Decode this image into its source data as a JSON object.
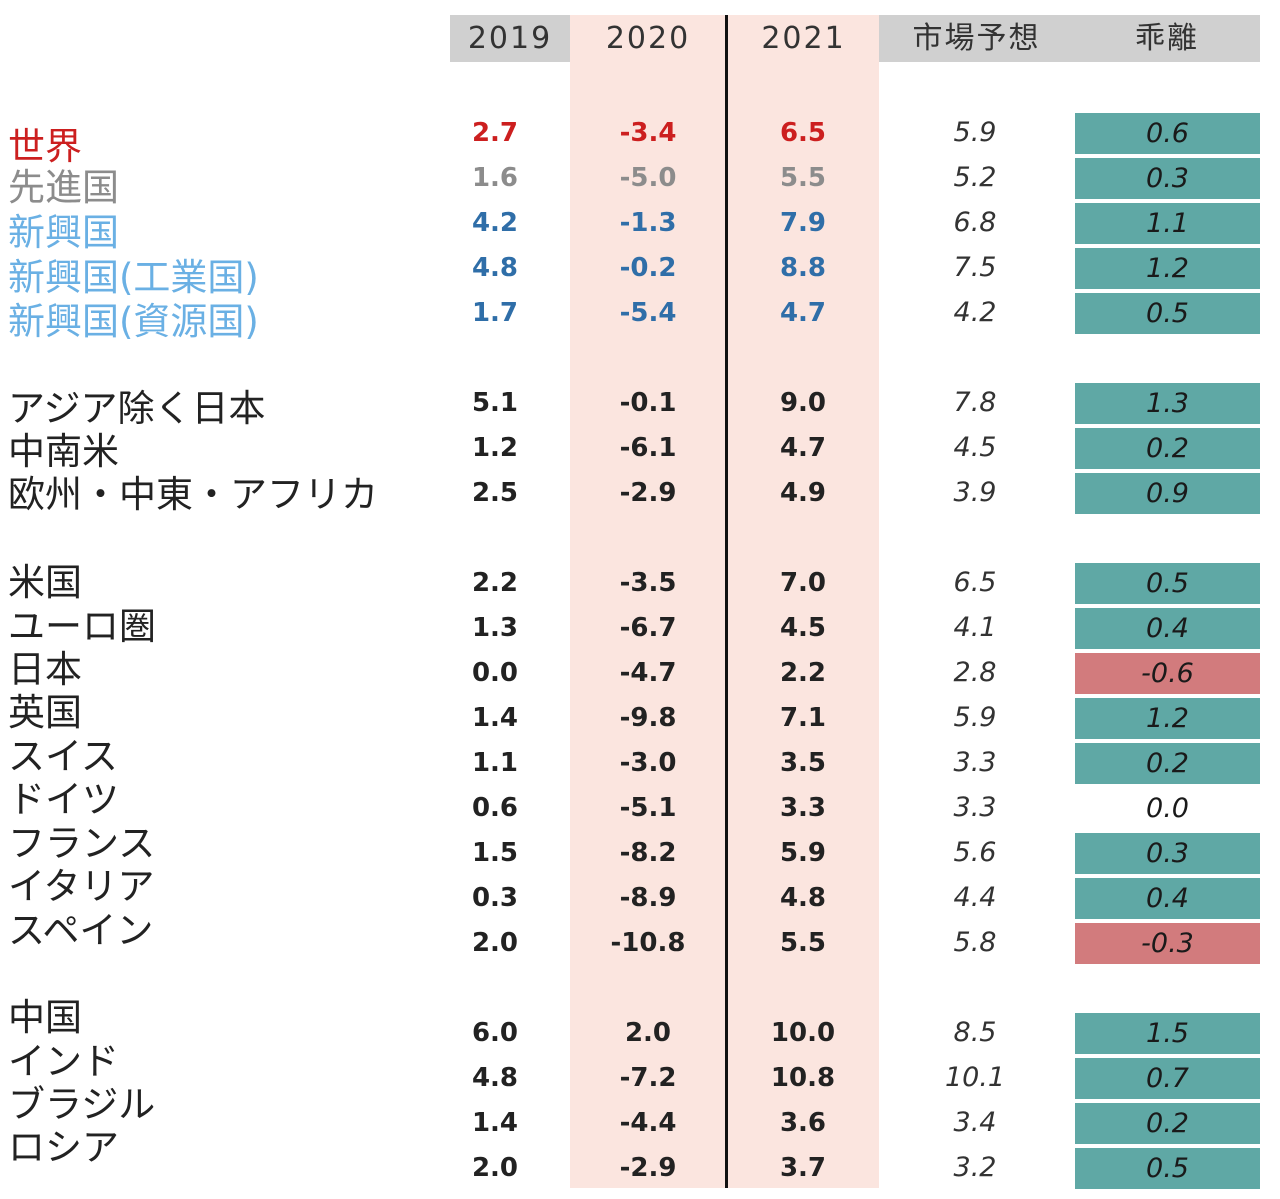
{
  "colors": {
    "header_bg": "#d0d0d0",
    "col2020_bg": "#fbe5df",
    "col2021_bg": "#fbe5df",
    "positive": "#5fa8a5",
    "negative": "#d27b7d",
    "world": "#cc1f1f",
    "advanced": "#8c8c8c",
    "emerging_label": "#6ab0e4",
    "emerging_value": "#2f6ea8",
    "default": "#222222"
  },
  "headers": [
    "2019",
    "2020",
    "2021",
    "市場予想",
    "乖離"
  ],
  "chart_data": {
    "type": "table",
    "columns": [
      "2019",
      "2020",
      "2021",
      "市場予想",
      "乖離"
    ],
    "rows": [
      {
        "name": "世界",
        "group": "world",
        "values": [
          "2.7",
          "-3.4",
          "6.5",
          "5.9",
          "0.6"
        ]
      },
      {
        "name": "先進国",
        "group": "advanced",
        "values": [
          "1.6",
          "-5.0",
          "5.5",
          "5.2",
          "0.3"
        ]
      },
      {
        "name": "新興国",
        "group": "emerging",
        "values": [
          "4.2",
          "-1.3",
          "7.9",
          "6.8",
          "1.1"
        ]
      },
      {
        "name": "新興国(工業国)",
        "group": "emerging",
        "values": [
          "4.8",
          "-0.2",
          "8.8",
          "7.5",
          "1.2"
        ]
      },
      {
        "name": "新興国(資源国)",
        "group": "emerging",
        "values": [
          "1.7",
          "-5.4",
          "4.7",
          "4.2",
          "0.5"
        ]
      },
      {
        "name": "アジア除く日本",
        "group": "default",
        "values": [
          "5.1",
          "-0.1",
          "9.0",
          "7.8",
          "1.3"
        ]
      },
      {
        "name": "中南米",
        "group": "default",
        "values": [
          "1.2",
          "-6.1",
          "4.7",
          "4.5",
          "0.2"
        ]
      },
      {
        "name": "欧州・中東・アフリカ",
        "group": "default",
        "values": [
          "2.5",
          "-2.9",
          "4.9",
          "3.9",
          "0.9"
        ]
      },
      {
        "name": "米国",
        "group": "default",
        "values": [
          "2.2",
          "-3.5",
          "7.0",
          "6.5",
          "0.5"
        ]
      },
      {
        "name": "ユーロ圏",
        "group": "default",
        "values": [
          "1.3",
          "-6.7",
          "4.5",
          "4.1",
          "0.4"
        ]
      },
      {
        "name": "日本",
        "group": "default",
        "values": [
          "0.0",
          "-4.7",
          "2.2",
          "2.8",
          "-0.6"
        ]
      },
      {
        "name": "英国",
        "group": "default",
        "values": [
          "1.4",
          "-9.8",
          "7.1",
          "5.9",
          "1.2"
        ]
      },
      {
        "name": "スイス",
        "group": "default",
        "values": [
          "1.1",
          "-3.0",
          "3.5",
          "3.3",
          "0.2"
        ]
      },
      {
        "name": "ドイツ",
        "group": "default",
        "values": [
          "0.6",
          "-5.1",
          "3.3",
          "3.3",
          "0.0"
        ]
      },
      {
        "name": "フランス",
        "group": "default",
        "values": [
          "1.5",
          "-8.2",
          "5.9",
          "5.6",
          "0.3"
        ]
      },
      {
        "name": "イタリア",
        "group": "default",
        "values": [
          "0.3",
          "-8.9",
          "4.8",
          "4.4",
          "0.4"
        ]
      },
      {
        "name": "スペイン",
        "group": "default",
        "values": [
          "2.0",
          "-10.8",
          "5.5",
          "5.8",
          "-0.3"
        ]
      },
      {
        "name": "中国",
        "group": "default",
        "values": [
          "6.0",
          "2.0",
          "10.0",
          "8.5",
          "1.5"
        ]
      },
      {
        "name": "インド",
        "group": "default",
        "values": [
          "4.8",
          "-7.2",
          "10.8",
          "10.1",
          "0.7"
        ]
      },
      {
        "name": "ブラジル",
        "group": "default",
        "values": [
          "1.4",
          "-4.4",
          "3.6",
          "3.4",
          "0.2"
        ]
      },
      {
        "name": "ロシア",
        "group": "default",
        "values": [
          "2.0",
          "-2.9",
          "3.7",
          "3.2",
          "0.5"
        ]
      }
    ]
  }
}
